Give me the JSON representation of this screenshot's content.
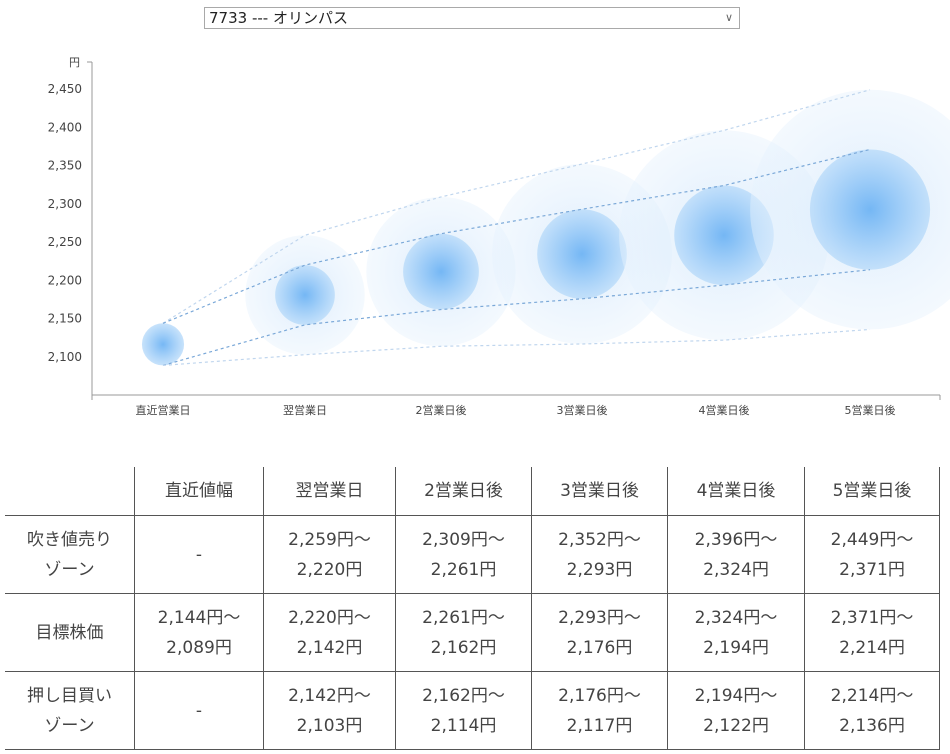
{
  "selector": {
    "value": "7733 --- オリンパス",
    "chevron_icon": "chevron-down-icon"
  },
  "chart_data": {
    "type": "bubble",
    "ylabel": "円",
    "ylim": [
      2060,
      2490
    ],
    "yticks": [
      "2,100",
      "2,150",
      "2,200",
      "2,250",
      "2,300",
      "2,350",
      "2,400",
      "2,450"
    ],
    "ytick_values": [
      2100,
      2150,
      2200,
      2250,
      2300,
      2350,
      2400,
      2450
    ],
    "categories": [
      "直近営業日",
      "翌営業日",
      "2営業日後",
      "3営業日後",
      "4営業日後",
      "5営業日後"
    ],
    "lines": {
      "sell_zone_upper": [
        2144,
        2259,
        2309,
        2352,
        2396,
        2449
      ],
      "target_upper": [
        2144,
        2220,
        2261,
        2293,
        2324,
        2371
      ],
      "target_lower": [
        2089,
        2142,
        2162,
        2176,
        2194,
        2214
      ],
      "buy_zone_lower": [
        2089,
        2103,
        2114,
        2117,
        2122,
        2136
      ]
    },
    "colors": {
      "bubble": "#5aa8f0",
      "line": "#7aa8d8",
      "outer_line": "#c0d6ee"
    },
    "grid": false
  },
  "table": {
    "headers": [
      "",
      "直近値幅",
      "翌営業日",
      "2営業日後",
      "3営業日後",
      "4営業日後",
      "5営業日後"
    ],
    "rows": [
      {
        "label": [
          "吹き値売り",
          "ゾーン"
        ],
        "cells": [
          [
            "-"
          ],
          [
            "2,259円～",
            "2,220円"
          ],
          [
            "2,309円～",
            "2,261円"
          ],
          [
            "2,352円～",
            "2,293円"
          ],
          [
            "2,396円～",
            "2,324円"
          ],
          [
            "2,449円～",
            "2,371円"
          ]
        ]
      },
      {
        "label": [
          "目標株価"
        ],
        "cells": [
          [
            "2,144円～",
            "2,089円"
          ],
          [
            "2,220円～",
            "2,142円"
          ],
          [
            "2,261円～",
            "2,162円"
          ],
          [
            "2,293円～",
            "2,176円"
          ],
          [
            "2,324円～",
            "2,194円"
          ],
          [
            "2,371円～",
            "2,214円"
          ]
        ]
      },
      {
        "label": [
          "押し目買い",
          "ゾーン"
        ],
        "cells": [
          [
            "-"
          ],
          [
            "2,142円～",
            "2,103円"
          ],
          [
            "2,162円～",
            "2,114円"
          ],
          [
            "2,176円～",
            "2,117円"
          ],
          [
            "2,194円～",
            "2,122円"
          ],
          [
            "2,214円～",
            "2,136円"
          ]
        ]
      }
    ]
  }
}
